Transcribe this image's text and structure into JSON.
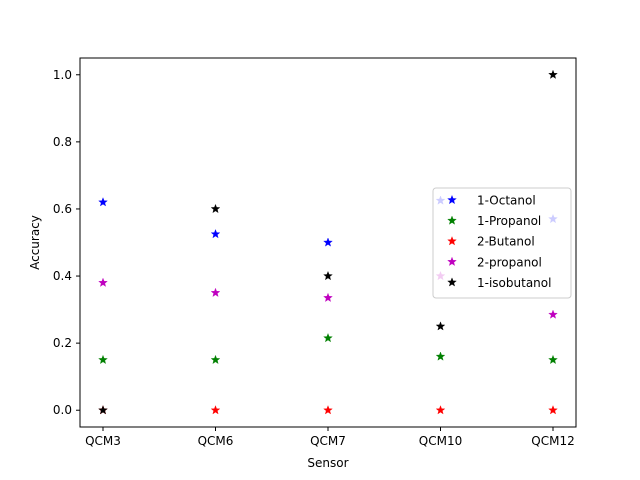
{
  "chart_data": {
    "type": "scatter",
    "title": "",
    "xlabel": "Sensor",
    "ylabel": "Accuracy",
    "categories": [
      "QCM3",
      "QCM6",
      "QCM7",
      "QCM10",
      "QCM12"
    ],
    "ylim": [
      -0.05,
      1.05
    ],
    "yticks": [
      0.0,
      0.2,
      0.4,
      0.6,
      0.8,
      1.0
    ],
    "ytick_labels": [
      "0.0",
      "0.2",
      "0.4",
      "0.6",
      "0.8",
      "1.0"
    ],
    "marker": "star",
    "grid": false,
    "legend_position": "center-right",
    "series": [
      {
        "name": "1-Octanol",
        "color": "#0000ff",
        "values": [
          0.62,
          0.525,
          0.5,
          0.625,
          0.57
        ]
      },
      {
        "name": "1-Propanol",
        "color": "#008000",
        "values": [
          0.15,
          0.15,
          0.215,
          0.16,
          0.15
        ]
      },
      {
        "name": "2-Butanol",
        "color": "#ff0000",
        "values": [
          0.0,
          0.0,
          0.0,
          0.0,
          0.0
        ]
      },
      {
        "name": "2-propanol",
        "color": "#bf00bf",
        "values": [
          0.38,
          0.35,
          0.335,
          0.4,
          0.285
        ]
      },
      {
        "name": "1-isobutanol",
        "color": "#000000",
        "values": [
          0.0,
          0.6,
          0.4,
          0.25,
          1.0
        ]
      }
    ]
  }
}
